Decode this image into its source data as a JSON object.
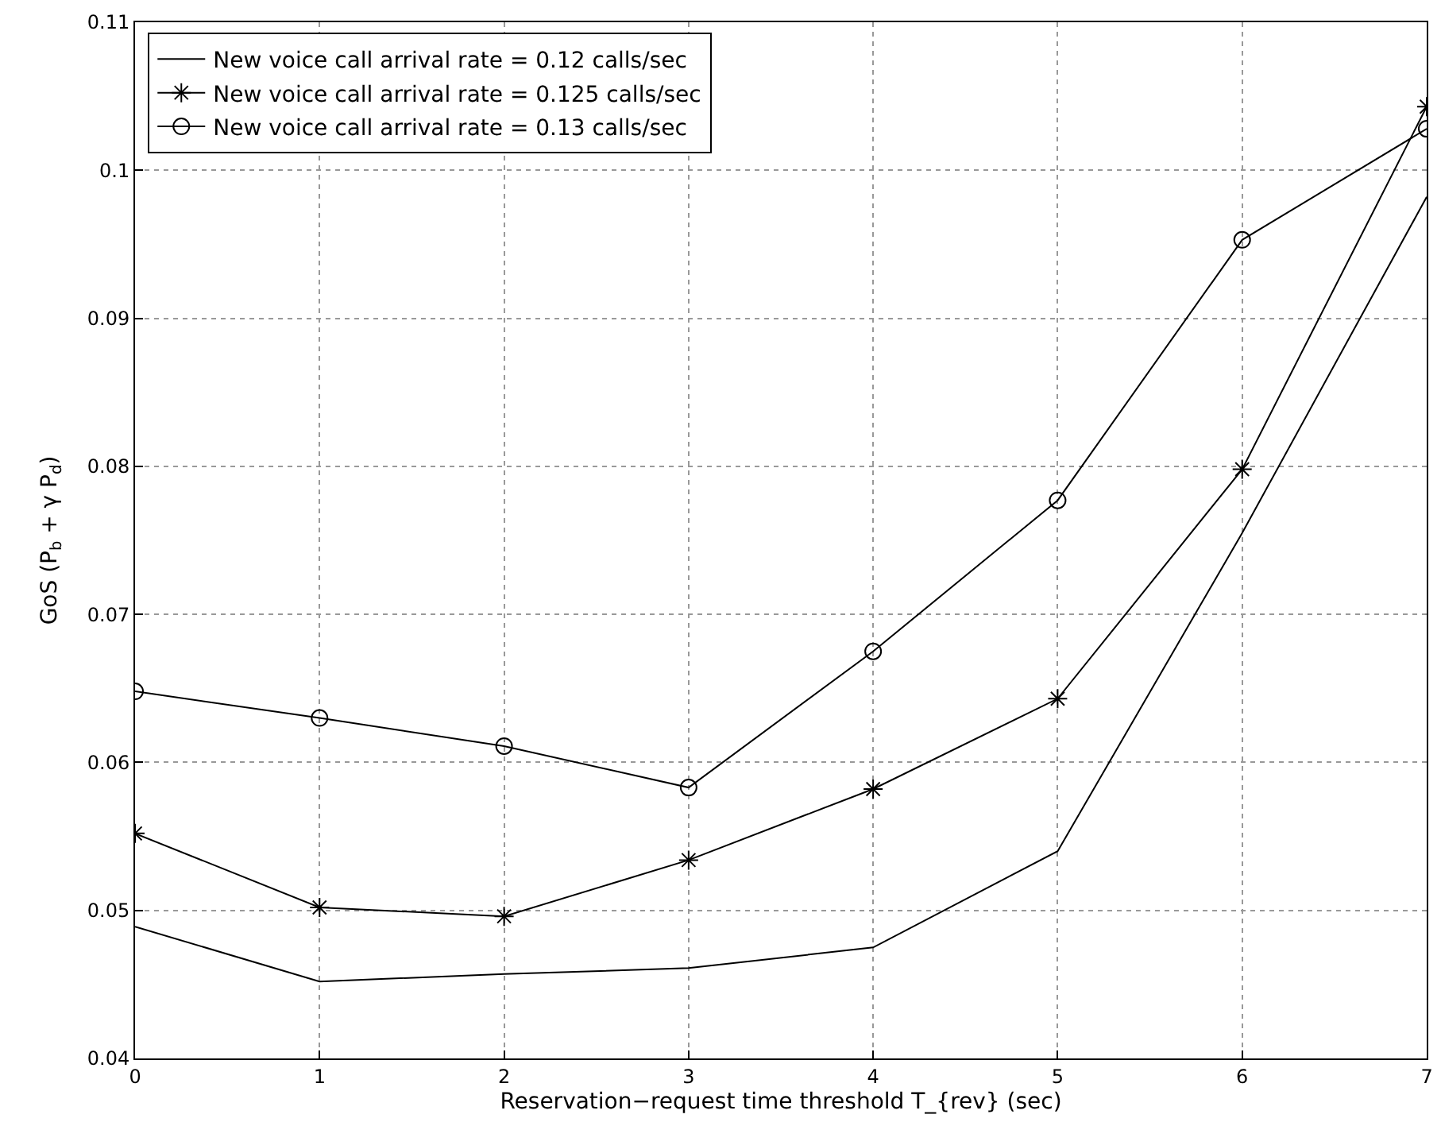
{
  "chart_data": {
    "type": "line",
    "xlabel": "Reservation−request time threshold T_{rev} (sec)",
    "ylabel": "GoS (P$_{b}$ + γ P$_{d}$)",
    "x": [
      0,
      1,
      2,
      3,
      4,
      5,
      6,
      7
    ],
    "series": [
      {
        "name": "New voice call arrival rate = 0.12 calls/sec",
        "color": "#000000",
        "marker": "none",
        "values": [
          0.0489,
          0.0452,
          0.0457,
          0.0461,
          0.0475,
          0.054,
          0.0755,
          0.0982
        ]
      },
      {
        "name": "New voice call arrival rate = 0.125 calls/sec",
        "color": "#000000",
        "marker": "cross",
        "values": [
          0.0552,
          0.0502,
          0.0496,
          0.0534,
          0.0582,
          0.0643,
          0.0798,
          0.1043
        ]
      },
      {
        "name": "New voice call arrival rate = 0.13 calls/sec",
        "color": "#000000",
        "marker": "circle",
        "values": [
          0.0648,
          0.063,
          0.0611,
          0.0583,
          0.0675,
          0.0777,
          0.0953,
          0.1028
        ]
      }
    ],
    "xlim": [
      0,
      7
    ],
    "xticks": [
      0,
      1,
      2,
      3,
      4,
      5,
      6,
      7
    ],
    "ylim": [
      0.04,
      0.11
    ],
    "yticks": [
      0.04,
      0.05,
      0.06,
      0.07,
      0.08,
      0.09,
      0.1,
      0.11
    ],
    "grid": true,
    "legend": "top left",
    "line_style": "solid"
  }
}
